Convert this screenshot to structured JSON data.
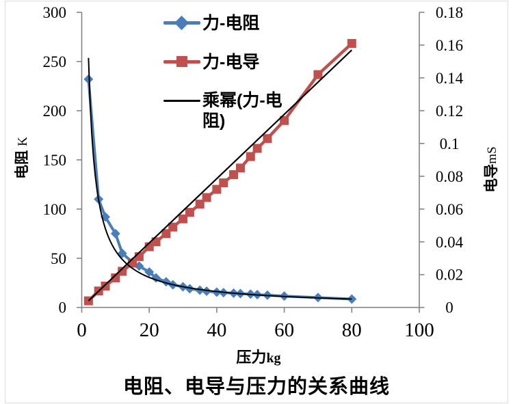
{
  "chart_data": {
    "type": "line",
    "title": "电阻、电导与压力的关系曲线",
    "x_axis": {
      "label_cn": "压力",
      "label_unit": "kg",
      "ticks": [
        0,
        20,
        40,
        60,
        80,
        100
      ],
      "range": [
        0,
        100
      ]
    },
    "y_axis_left": {
      "label_cn": "电阻",
      "label_unit": "K",
      "ticks": [
        0,
        50,
        100,
        150,
        200,
        250,
        300
      ],
      "range": [
        0,
        300
      ]
    },
    "y_axis_right": {
      "label_cn": "电导",
      "label_unit": "mS",
      "tick_labels": [
        "0",
        "0.02",
        "0.04",
        "0.06",
        "0.08",
        "0.1",
        "0.12",
        "0.14",
        "0.16",
        "0.18"
      ],
      "range": [
        0,
        0.18
      ]
    },
    "x": [
      2,
      5,
      7,
      10,
      12,
      15,
      17,
      20,
      22,
      25,
      27,
      30,
      32,
      35,
      37,
      40,
      42,
      45,
      47,
      50,
      52,
      55,
      60,
      70,
      80
    ],
    "series": [
      {
        "name": "力-电阻",
        "axis": "left",
        "color": "#4a7ebb",
        "marker": "diamond",
        "values": [
          232,
          110,
          92,
          75,
          55,
          46,
          42,
          36,
          30,
          26,
          23,
          21,
          19,
          17.5,
          16.5,
          15.5,
          15,
          14.5,
          14,
          13.5,
          13,
          12.5,
          11.5,
          10,
          8.5
        ]
      },
      {
        "name": "力-电导",
        "axis": "right",
        "color": "#c0504d",
        "marker": "square",
        "values": [
          0.004,
          0.01,
          0.013,
          0.018,
          0.022,
          0.027,
          0.031,
          0.037,
          0.04,
          0.045,
          0.049,
          0.054,
          0.058,
          0.063,
          0.067,
          0.072,
          0.076,
          0.081,
          0.085,
          0.092,
          0.097,
          0.103,
          0.114,
          0.142,
          0.161
        ]
      }
    ],
    "trendlines": [
      {
        "legend_label": "乘幂(力-电阻)",
        "type": "power",
        "axis": "left",
        "color": "#000000",
        "a": 480,
        "b": -0.92,
        "x_start": 2,
        "x_end": 80
      },
      {
        "legend_label": null,
        "type": "linear",
        "axis": "right",
        "color": "#000000",
        "x_start": 2,
        "y_start": 0.004,
        "x_end": 80,
        "y_end": 0.157
      }
    ],
    "legend": {
      "position": "top-center",
      "entries": [
        {
          "label": "力-电阻",
          "marker": "line-diamond",
          "color": "#4a7ebb"
        },
        {
          "label": "力-电导",
          "marker": "line-square",
          "color": "#c0504d"
        },
        {
          "label": "乘幂(力-电阻)",
          "marker": "line",
          "color": "#000000"
        }
      ]
    },
    "grid": false,
    "axis_color": "#848484",
    "background": "#ffffff"
  }
}
